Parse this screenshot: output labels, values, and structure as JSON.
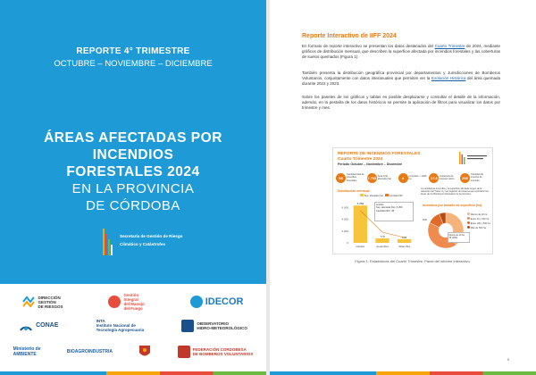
{
  "cover": {
    "report_title": "REPORTE 4° TRIMESTRE",
    "report_period": "OCTUBRE – NOVIEMBRE – DICIEMBRE",
    "headline_lines": [
      "ÁREAS AFECTADAS POR",
      "INCENDIOS",
      "FORESTALES 2024"
    ],
    "subheadline_lines": [
      "EN LA PROVINCIA",
      "DE CÓRDOBA"
    ],
    "secretaria_line1": "Secretaría de Gestión de Riesgo",
    "secretaria_line2": "Climático y Catástrofes",
    "logos_row1": [
      {
        "name": "direccion",
        "text": "DIRECCIÓN\nGESTIÓN\nDE RIESGOS"
      },
      {
        "name": "gestion-integral",
        "text": "Gestión\nIntegral\ndel Manejo\ndel Fuego"
      },
      {
        "name": "idecor",
        "text": "IDECOR"
      }
    ],
    "logos_row2": [
      {
        "name": "conae",
        "text": "CONAE"
      },
      {
        "name": "inta",
        "text": "INTA\nInstituto Nacional de\nTecnología Agropecuaria"
      },
      {
        "name": "observatorio",
        "text": "OBSERVATORIO\nHIDRO-METEOROLÓGICO"
      }
    ],
    "logos_row3": [
      {
        "name": "ambiente",
        "text": "Ministerio de\nAMBIENTE"
      },
      {
        "name": "bioindustria",
        "text": "BIOAGROINDUSTRIA"
      },
      {
        "name": "escudo",
        "text": ""
      },
      {
        "name": "federacion",
        "text": "FEDERACIÓN CORDOBESA\nDE BOMBEROS VOLUNTARIOS"
      }
    ]
  },
  "inner": {
    "heading": "Reporte Interactivo de IIFF 2024",
    "p1_pre": "En formato de reporte interactivo se presentan los datos destacados del ",
    "p1_link": "Cuarto Trimestre",
    "p1_post": " de 2024, mediante gráficos de distribución mensual, que describen la superficie afectada por incendios forestales y las coberturas de suelos quemados (Figura 1).",
    "p2_pre": "También presenta la distribución geográfica provincial por departamentos y Jurisdicciones de Bomberos Voluntarios, conjuntamente con datos interanuales que permiten ver la ",
    "p2_link": "Evolución Histórica",
    "p2_post": " del área quemada durante 2022 y 2023.",
    "p3": "Sobre los paneles de los gráficos y tablas es posible desplazarse y consultar el detalle de la información, además, en la pestaña de los datos históricos se permite la aplicación de filtros para visualizar los datos por trimestre y mes.",
    "caption": "Figura 1: Estadísticas del Cuarto Trimestre. Panel del informe interactivo.",
    "page_number": "5"
  },
  "panel": {
    "title1": "REPORTE DE INCENDIOS FORESTALES",
    "title2": "Cuarto Trimestre 2024",
    "period": "Período Octubre – Noviembre – Diciembre",
    "kpis": [
      {
        "value": "98",
        "label": "Cantidad total de incendios forestales"
      },
      {
        "value": "7.765",
        "label": "Área total afectada (ha)"
      },
      {
        "value": "4",
        "label": "Incendios > 1000 ha"
      },
      {
        "value": "17.8",
        "label": "Cobertura de bosque nativo"
      },
      {
        "value": "298",
        "label": "Cantidad de eventos de incendio"
      }
    ],
    "note": "La cantidad de incendios y la superficie afectada surgen de la detección del Tramo 4 y sus registros del sistema que reportaron las áreas de los Bomberos Voluntarios de la provincia.",
    "bar_section": "Distribución mensual",
    "legend_area": "Sup. afectada (ha)",
    "legend_count": "Cantidad IIFF",
    "tooltip_title": "octubre",
    "tooltip_line1": "Sup. afectada (ha): 6,359",
    "tooltip_line2": "Cantidad IIFF: 38",
    "pie_section": "Incendios por tamaño de superficie (ha)",
    "pie_legend": [
      "Menos de 10 ha",
      "Entre 10 y 100 ha",
      "Entre 100 y 500 ha",
      "Más de 500 ha"
    ],
    "pie_labels": [
      "40%",
      "42%"
    ],
    "pie_tooltip1": "Menos de 10 ha",
    "pie_tooltip2": "39 (40%)"
  },
  "chart_data": [
    {
      "type": "bar",
      "title": "Distribución mensual",
      "categories": [
        "octubre",
        "noviembre",
        "diciembre"
      ],
      "series": [
        {
          "name": "Sup. afectada (ha)",
          "values": [
            6359,
            770,
            636
          ]
        }
      ],
      "value_labels": [
        "6.359",
        "770",
        "636"
      ],
      "yticks": [
        "0",
        "2.000",
        "4.000",
        "6.000"
      ],
      "ylim": [
        0,
        7000
      ],
      "colors": [
        "#f7c43b"
      ]
    },
    {
      "type": "pie",
      "title": "Incendios por tamaño de superficie (ha)",
      "labels": [
        "Menos de 10 ha",
        "Entre 10 y 100 ha",
        "Entre 100 y 500 ha",
        "Más de 500 ha"
      ],
      "values": [
        40,
        42,
        12,
        6
      ],
      "colors": [
        "#f6b37b",
        "#ef8b4e",
        "#e06a2a",
        "#b94a12"
      ]
    }
  ]
}
